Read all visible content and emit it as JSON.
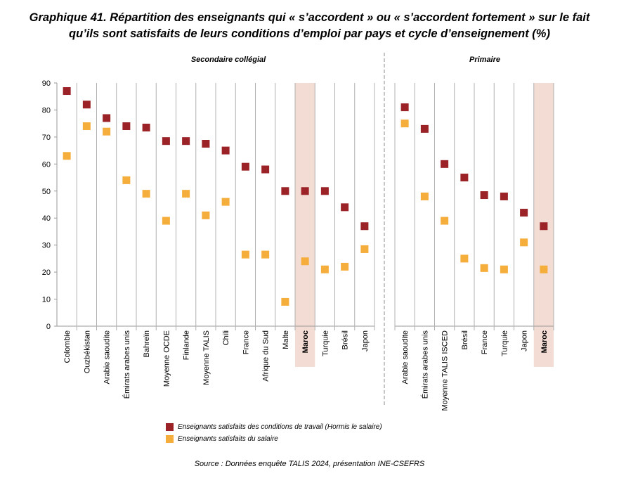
{
  "title_line1": "Graphique 41. Répartition des enseignants qui « s’accordent » ou « s’accordent fortement » sur le fait",
  "title_line2": "qu’ils sont satisfaits de leurs conditions d’emploi par pays et cycle d’enseignement (%)",
  "source": "Source : Données enquête TALIS 2024, présentation INE-CSEFRS",
  "colors": {
    "work": "#9B2226",
    "salary": "#F5AD3C",
    "highlight": "#F3DCD4"
  },
  "chart_data": {
    "type": "scatter",
    "ylim": [
      0,
      90
    ],
    "yticks": [
      0,
      10,
      20,
      30,
      40,
      50,
      60,
      70,
      80,
      90
    ],
    "legend_position": "bottom",
    "legend": [
      "Enseignants satisfaits des conditions de travail (Hormis le salaire)",
      "Enseignants satisfaits du salaire"
    ],
    "panels": [
      {
        "title": "Secondaire collégial",
        "highlight": "Maroc",
        "categories": [
          "Colombie",
          "Ouzbékistan",
          "Arabie saoudite",
          "Émirats arabes unis",
          "Bahreïn",
          "Moyenne OCDE",
          "Finlande",
          "Moyenne TALIS",
          "Chili",
          "France",
          "Afrique du Sud",
          "Malte",
          "Maroc",
          "Turquie",
          "Brésil",
          "Japon"
        ],
        "series": [
          {
            "name": "Enseignants satisfaits des conditions de travail (Hormis le salaire)",
            "values": [
              87,
              82,
              77,
              74,
              73.5,
              68.5,
              68.5,
              67.5,
              65,
              59,
              58,
              50,
              50,
              50,
              44,
              37
            ]
          },
          {
            "name": "Enseignants satisfaits du salaire",
            "values": [
              63,
              74,
              72,
              54,
              49,
              39,
              49,
              41,
              46,
              26.5,
              26.5,
              9,
              24,
              21,
              22,
              28.5
            ]
          }
        ]
      },
      {
        "title": "Primaire",
        "highlight": "Maroc",
        "categories": [
          "Arabie saoudite",
          "Émirats arabes unis",
          "Moyenne TALIS ISCED",
          "Brésil",
          "France",
          "Turquie",
          "Japon",
          "Maroc"
        ],
        "series": [
          {
            "name": "Enseignants satisfaits des conditions de travail (Hormis le salaire)",
            "values": [
              81,
              73,
              60,
              55,
              48.5,
              48,
              42,
              37
            ]
          },
          {
            "name": "Enseignants satisfaits du salaire",
            "values": [
              75,
              48,
              39,
              25,
              21.5,
              21,
              31,
              21
            ]
          }
        ]
      }
    ]
  }
}
